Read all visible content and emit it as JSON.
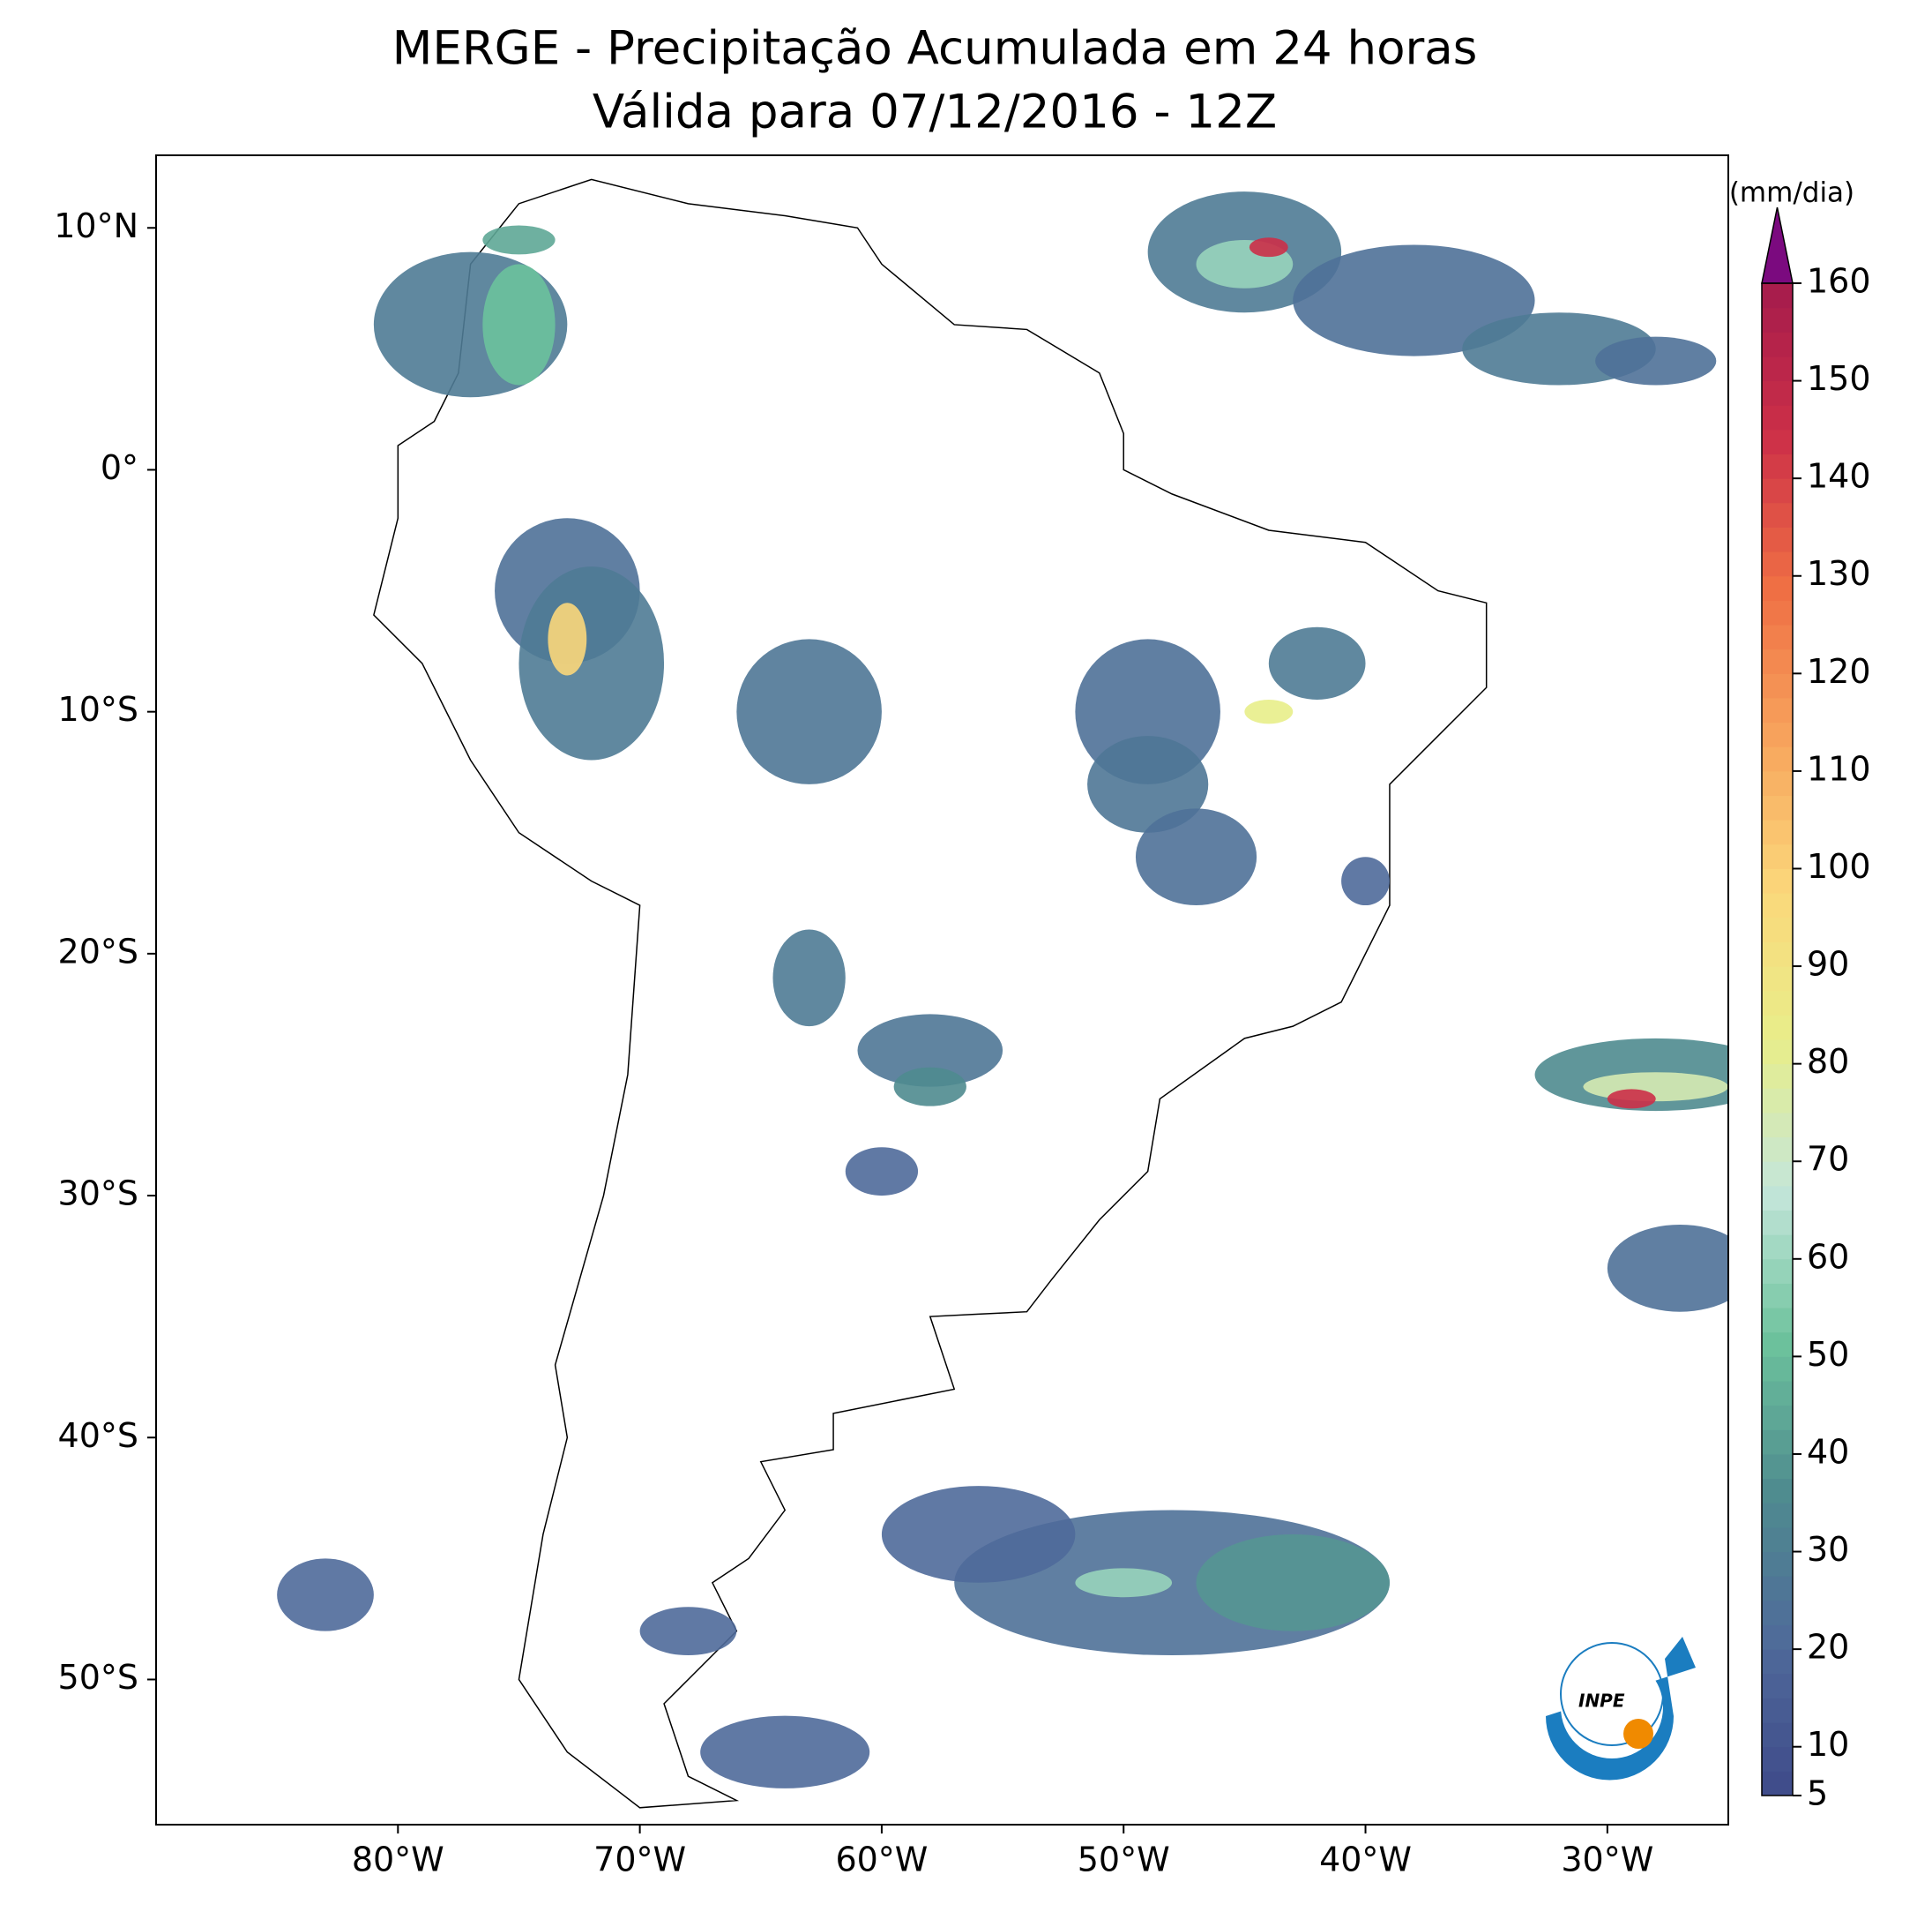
{
  "title": [
    "MERGE - Precipitação Acumulada em 24 horas",
    "Válida para 07/12/2016 - 12Z"
  ],
  "map": {
    "lon_range": [
      -90,
      -25
    ],
    "lat_range": [
      -56,
      13
    ],
    "lon_ticks": [
      {
        "value": -80,
        "label": "80°W"
      },
      {
        "value": -70,
        "label": "70°W"
      },
      {
        "value": -60,
        "label": "60°W"
      },
      {
        "value": -50,
        "label": "50°W"
      },
      {
        "value": -40,
        "label": "40°W"
      },
      {
        "value": -30,
        "label": "30°W"
      }
    ],
    "lat_ticks": [
      {
        "value": 10,
        "label": "10°N"
      },
      {
        "value": 0,
        "label": "0°"
      },
      {
        "value": -10,
        "label": "10°S"
      },
      {
        "value": -20,
        "label": "20°S"
      },
      {
        "value": -30,
        "label": "30°S"
      },
      {
        "value": -40,
        "label": "40°S"
      },
      {
        "value": -50,
        "label": "50°S"
      }
    ]
  },
  "colorbar": {
    "label": "(mm/dia)",
    "range": [
      5,
      160
    ],
    "ticks": [
      5,
      10,
      20,
      30,
      40,
      50,
      60,
      70,
      80,
      90,
      100,
      110,
      120,
      130,
      140,
      150,
      160
    ],
    "colors": [
      "#3f4a8a",
      "#4f6a9a",
      "#4f8b8f",
      "#6cc29c",
      "#c4e6da",
      "#e8ee8a",
      "#fbd77a",
      "#f7a35c",
      "#ef6e44",
      "#cc2f48",
      "#a51b4c"
    ],
    "extend_color": "#7b0a7f"
  },
  "logo": "INPE"
}
